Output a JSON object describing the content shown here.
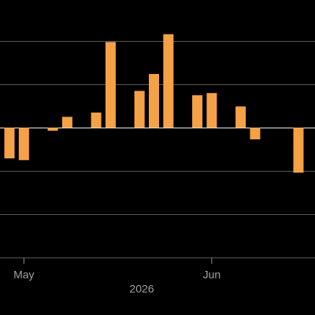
{
  "chart_data": {
    "type": "bar",
    "xlabel": "2026",
    "categories": [
      null,
      null,
      null,
      null,
      null,
      null,
      null,
      null,
      null,
      null,
      null,
      null,
      null,
      null,
      null,
      null,
      null,
      null,
      null,
      null,
      null
    ],
    "values": [
      -0.71,
      -0.75,
      null,
      -0.07,
      0.25,
      null,
      0.35,
      1.98,
      null,
      0.85,
      1.24,
      2.16,
      null,
      0.75,
      0.8,
      null,
      0.49,
      -0.27,
      null,
      null,
      -1.04
    ],
    "color": "#f5a146",
    "xticks": [
      {
        "value": 1,
        "label": "May"
      },
      {
        "value": 14,
        "label": "Jun"
      }
    ],
    "ylim": [
      -3,
      2.95
    ],
    "yticks": [
      -3,
      -2,
      -1,
      0,
      1,
      2
    ],
    "grid": true
  }
}
